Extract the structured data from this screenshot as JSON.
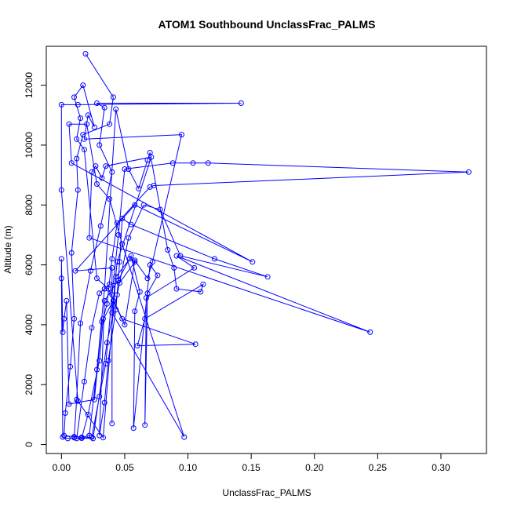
{
  "chart_data": {
    "type": "line",
    "title": "ATOM1 Southbound UnclassFrac_PALMS",
    "xlabel": "UnclassFrac_PALMS",
    "ylabel": "Altitude (m)",
    "xlim": [
      -0.012,
      0.336
    ],
    "ylim": [
      -300,
      13300
    ],
    "xticks": [
      "0.00",
      "0.05",
      "0.10",
      "0.15",
      "0.20",
      "0.25",
      "0.30"
    ],
    "xtick_values": [
      0,
      0.05,
      0.1,
      0.15,
      0.2,
      0.25,
      0.3
    ],
    "yticks": [
      "0",
      "2000",
      "4000",
      "6000",
      "8000",
      "10000",
      "12000"
    ],
    "ytick_values": [
      0,
      2000,
      4000,
      6000,
      8000,
      10000,
      12000
    ],
    "grid": false,
    "series": [
      {
        "color": "#0000ff",
        "marker": "open-circle",
        "points": [
          [
            0.019,
            13050
          ],
          [
            0.041,
            11600
          ],
          [
            0.038,
            10700
          ],
          [
            0.017,
            10350
          ],
          [
            0.012,
            9550
          ],
          [
            0.013,
            8500
          ],
          [
            0.008,
            6400
          ],
          [
            0.01,
            4200
          ],
          [
            0.007,
            2600
          ],
          [
            0.003,
            1050
          ],
          [
            0.002,
            300
          ],
          [
            0.01,
            260
          ],
          [
            0.016,
            240
          ],
          [
            0.022,
            300
          ],
          [
            0.028,
            2500
          ],
          [
            0.034,
            5200
          ],
          [
            0.043,
            11200
          ],
          [
            0.053,
            9200
          ],
          [
            0.061,
            8550
          ],
          [
            0.068,
            9500
          ],
          [
            0.07,
            9750
          ],
          [
            0.084,
            6500
          ],
          [
            0.089,
            5900
          ],
          [
            0.091,
            5200
          ],
          [
            0.11,
            5100
          ],
          [
            0.112,
            5350
          ],
          [
            0.066,
            4200
          ],
          [
            0.06,
            3300
          ],
          [
            0.106,
            3350
          ],
          [
            0.048,
            4200
          ],
          [
            0.037,
            5200
          ],
          [
            0.028,
            5550
          ],
          [
            0.018,
            9850
          ],
          [
            0.012,
            10200
          ],
          [
            0.015,
            10900
          ],
          [
            0.01,
            11600
          ],
          [
            0.017,
            12000
          ],
          [
            0.026,
            10600
          ],
          [
            0.021,
            11000
          ],
          [
            0.018,
            10200
          ],
          [
            0.095,
            10350
          ],
          [
            0.072,
            6100
          ],
          [
            0.068,
            5550
          ],
          [
            0.058,
            6150
          ],
          [
            0.05,
            4000
          ],
          [
            0.041,
            4800
          ],
          [
            0.032,
            4100
          ],
          [
            0.026,
            1500
          ],
          [
            0.006,
            1350
          ],
          [
            0.004,
            4800
          ],
          [
            0.002,
            4200
          ],
          [
            0.001,
            3750
          ],
          [
            0.0,
            6200
          ],
          [
            0.0,
            5550
          ],
          [
            0.001,
            250
          ],
          [
            0.005,
            200
          ],
          [
            0.01,
            230
          ],
          [
            0.012,
            1500
          ],
          [
            0.015,
            4050
          ],
          [
            0.023,
            5800
          ],
          [
            0.031,
            7300
          ],
          [
            0.04,
            9100
          ],
          [
            0.03,
            10000
          ],
          [
            0.034,
            11250
          ],
          [
            0.028,
            11400
          ],
          [
            0.142,
            11400
          ],
          [
            0.013,
            11350
          ],
          [
            0.0,
            11350
          ],
          [
            0.0,
            8500
          ],
          [
            0.013,
            1450
          ],
          [
            0.033,
            230
          ],
          [
            0.043,
            5600
          ],
          [
            0.054,
            6200
          ],
          [
            0.058,
            6100
          ],
          [
            0.046,
            5400
          ],
          [
            0.038,
            5350
          ],
          [
            0.03,
            5050
          ],
          [
            0.024,
            3900
          ],
          [
            0.018,
            2100
          ],
          [
            0.012,
            200
          ],
          [
            0.024,
            250
          ],
          [
            0.03,
            1600
          ],
          [
            0.035,
            2700
          ],
          [
            0.04,
            5000
          ],
          [
            0.045,
            7000
          ],
          [
            0.05,
            9200
          ],
          [
            0.088,
            9400
          ],
          [
            0.104,
            9400
          ],
          [
            0.116,
            9400
          ],
          [
            0.322,
            9100
          ],
          [
            0.073,
            8650
          ],
          [
            0.07,
            8600
          ],
          [
            0.044,
            7400
          ],
          [
            0.04,
            6200
          ],
          [
            0.036,
            4700
          ],
          [
            0.033,
            4200
          ],
          [
            0.03,
            2800
          ],
          [
            0.021,
            1000
          ],
          [
            0.016,
            210
          ],
          [
            0.025,
            200
          ],
          [
            0.036,
            3400
          ],
          [
            0.044,
            5000
          ],
          [
            0.053,
            6900
          ],
          [
            0.065,
            8000
          ],
          [
            0.078,
            7850
          ],
          [
            0.094,
            6300
          ],
          [
            0.163,
            5600
          ],
          [
            0.121,
            6200
          ],
          [
            0.055,
            7350
          ],
          [
            0.048,
            7550
          ],
          [
            0.046,
            6100
          ],
          [
            0.043,
            4500
          ],
          [
            0.037,
            2800
          ],
          [
            0.034,
            1400
          ],
          [
            0.03,
            300
          ],
          [
            0.034,
            4800
          ],
          [
            0.045,
            5500
          ],
          [
            0.055,
            6300
          ],
          [
            0.062,
            5100
          ],
          [
            0.058,
            4450
          ],
          [
            0.057,
            550
          ],
          [
            0.07,
            6000
          ],
          [
            0.076,
            5650
          ],
          [
            0.068,
            5050
          ],
          [
            0.066,
            650
          ],
          [
            0.067,
            4900
          ],
          [
            0.105,
            5900
          ],
          [
            0.091,
            6300
          ],
          [
            0.244,
            3750
          ],
          [
            0.022,
            6900
          ],
          [
            0.024,
            9100
          ],
          [
            0.027,
            9300
          ],
          [
            0.032,
            8900
          ],
          [
            0.035,
            9300
          ],
          [
            0.071,
            9600
          ],
          [
            0.044,
            6100
          ],
          [
            0.04,
            4400
          ],
          [
            0.097,
            250
          ],
          [
            0.048,
            6700
          ],
          [
            0.038,
            8200
          ],
          [
            0.028,
            8700
          ],
          [
            0.02,
            10700
          ],
          [
            0.006,
            10700
          ],
          [
            0.008,
            9400
          ],
          [
            0.151,
            6100
          ],
          [
            0.058,
            8000
          ],
          [
            0.011,
            5800
          ],
          [
            0.04,
            5900
          ],
          [
            0.04,
            700
          ]
        ]
      }
    ]
  }
}
